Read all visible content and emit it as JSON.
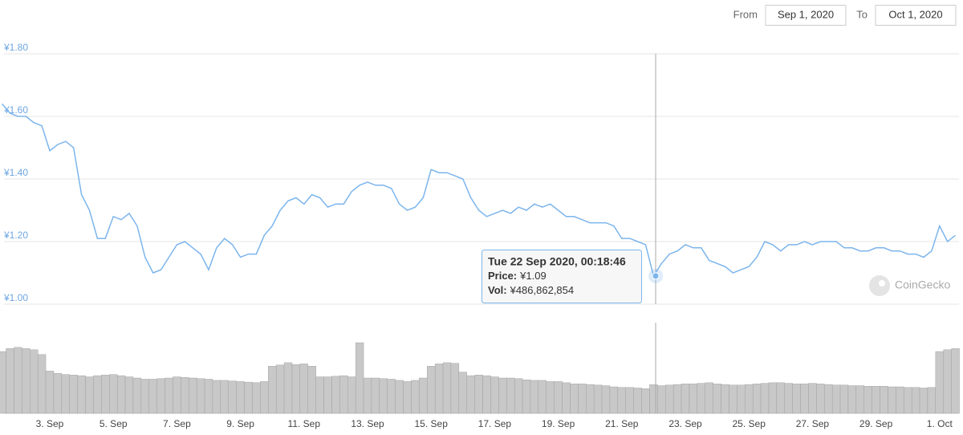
{
  "header": {
    "from_label": "From",
    "from_date": "Sep 1, 2020",
    "to_label": "To",
    "to_date": "Oct 1, 2020"
  },
  "watermark": "CoinGecko",
  "chart_data": {
    "type": "line",
    "categories": [
      null,
      null,
      null,
      null,
      null,
      null,
      "3. Sep",
      null,
      null,
      null,
      null,
      null,
      null,
      null,
      "5. Sep",
      null,
      null,
      null,
      null,
      null,
      null,
      null,
      "7. Sep",
      null,
      null,
      null,
      null,
      null,
      null,
      null,
      "9. Sep",
      null,
      null,
      null,
      null,
      null,
      null,
      null,
      "11. Sep",
      null,
      null,
      null,
      null,
      null,
      null,
      null,
      "13. Sep",
      null,
      null,
      null,
      null,
      null,
      null,
      null,
      "15. Sep",
      null,
      null,
      null,
      null,
      null,
      null,
      null,
      "17. Sep",
      null,
      null,
      null,
      null,
      null,
      null,
      null,
      "19. Sep",
      null,
      null,
      null,
      null,
      null,
      null,
      null,
      "21. Sep",
      null,
      null,
      null,
      null,
      null,
      null,
      null,
      "23. Sep",
      null,
      null,
      null,
      null,
      null,
      null,
      null,
      "25. Sep",
      null,
      null,
      null,
      null,
      null,
      null,
      null,
      "27. Sep",
      null,
      null,
      null,
      null,
      null,
      null,
      null,
      "29. Sep",
      null,
      null,
      null,
      null,
      null,
      null,
      null,
      "1. Oct",
      null,
      null
    ],
    "price": {
      "color": "#7cb5ec",
      "values": [
        1.64,
        1.61,
        1.6,
        1.6,
        1.58,
        1.57,
        1.49,
        1.51,
        1.52,
        1.5,
        1.35,
        1.3,
        1.21,
        1.21,
        1.28,
        1.27,
        1.29,
        1.25,
        1.15,
        1.1,
        1.11,
        1.15,
        1.19,
        1.2,
        1.18,
        1.16,
        1.11,
        1.18,
        1.21,
        1.19,
        1.15,
        1.16,
        1.16,
        1.22,
        1.25,
        1.3,
        1.33,
        1.34,
        1.32,
        1.35,
        1.34,
        1.31,
        1.32,
        1.32,
        1.36,
        1.38,
        1.39,
        1.38,
        1.38,
        1.37,
        1.32,
        1.3,
        1.31,
        1.34,
        1.43,
        1.42,
        1.42,
        1.41,
        1.4,
        1.34,
        1.3,
        1.28,
        1.29,
        1.3,
        1.29,
        1.31,
        1.3,
        1.32,
        1.31,
        1.32,
        1.3,
        1.28,
        1.28,
        1.27,
        1.26,
        1.26,
        1.26,
        1.25,
        1.21,
        1.21,
        1.2,
        1.19,
        1.09,
        1.13,
        1.16,
        1.17,
        1.19,
        1.18,
        1.18,
        1.14,
        1.13,
        1.12,
        1.1,
        1.11,
        1.12,
        1.15,
        1.2,
        1.19,
        1.17,
        1.19,
        1.19,
        1.2,
        1.19,
        1.2,
        1.2,
        1.2,
        1.18,
        1.18,
        1.17,
        1.17,
        1.18,
        1.18,
        1.17,
        1.17,
        1.16,
        1.16,
        1.15,
        1.17,
        1.25,
        1.2,
        1.22
      ]
    },
    "volume": {
      "axis": "y2",
      "color": "#c8c8c8",
      "values": [
        1050000000,
        1100000000,
        1120000000,
        1100000000,
        1080000000,
        1000000000,
        720000000,
        680000000,
        660000000,
        650000000,
        640000000,
        620000000,
        640000000,
        650000000,
        660000000,
        640000000,
        620000000,
        600000000,
        580000000,
        580000000,
        590000000,
        600000000,
        620000000,
        610000000,
        600000000,
        590000000,
        580000000,
        560000000,
        560000000,
        550000000,
        540000000,
        530000000,
        520000000,
        540000000,
        800000000,
        820000000,
        860000000,
        830000000,
        840000000,
        800000000,
        620000000,
        620000000,
        630000000,
        640000000,
        620000000,
        1200000000,
        600000000,
        600000000,
        590000000,
        580000000,
        560000000,
        540000000,
        560000000,
        600000000,
        800000000,
        840000000,
        860000000,
        850000000,
        700000000,
        640000000,
        650000000,
        640000000,
        620000000,
        600000000,
        600000000,
        590000000,
        570000000,
        560000000,
        560000000,
        540000000,
        540000000,
        520000000,
        500000000,
        500000000,
        490000000,
        480000000,
        470000000,
        450000000,
        440000000,
        440000000,
        430000000,
        420000000,
        486862854,
        470000000,
        480000000,
        490000000,
        500000000,
        500000000,
        510000000,
        520000000,
        500000000,
        490000000,
        480000000,
        480000000,
        490000000,
        500000000,
        510000000,
        520000000,
        520000000,
        510000000,
        500000000,
        500000000,
        510000000,
        500000000,
        490000000,
        480000000,
        480000000,
        470000000,
        470000000,
        460000000,
        460000000,
        460000000,
        450000000,
        450000000,
        440000000,
        440000000,
        430000000,
        440000000,
        1050000000,
        1080000000,
        1100000000
      ]
    },
    "ylim": [
      1.0,
      1.8
    ],
    "yticks": [
      {
        "value": 1.0,
        "label": "¥1.00"
      },
      {
        "value": 1.2,
        "label": "¥1.20"
      },
      {
        "value": 1.4,
        "label": "¥1.40"
      },
      {
        "value": 1.6,
        "label": "¥1.60"
      },
      {
        "value": 1.8,
        "label": "¥1.80"
      }
    ],
    "y2lim": [
      0,
      1500000000
    ],
    "grid": true,
    "tooltip": {
      "date": "Tue 22 Sep 2020, 00:18:46",
      "price_label": "Price:",
      "price": 1.09,
      "price_text": "¥1.09",
      "vol_label": "Vol:",
      "volume": 486862854,
      "volume_text": "¥486,862,854"
    }
  }
}
